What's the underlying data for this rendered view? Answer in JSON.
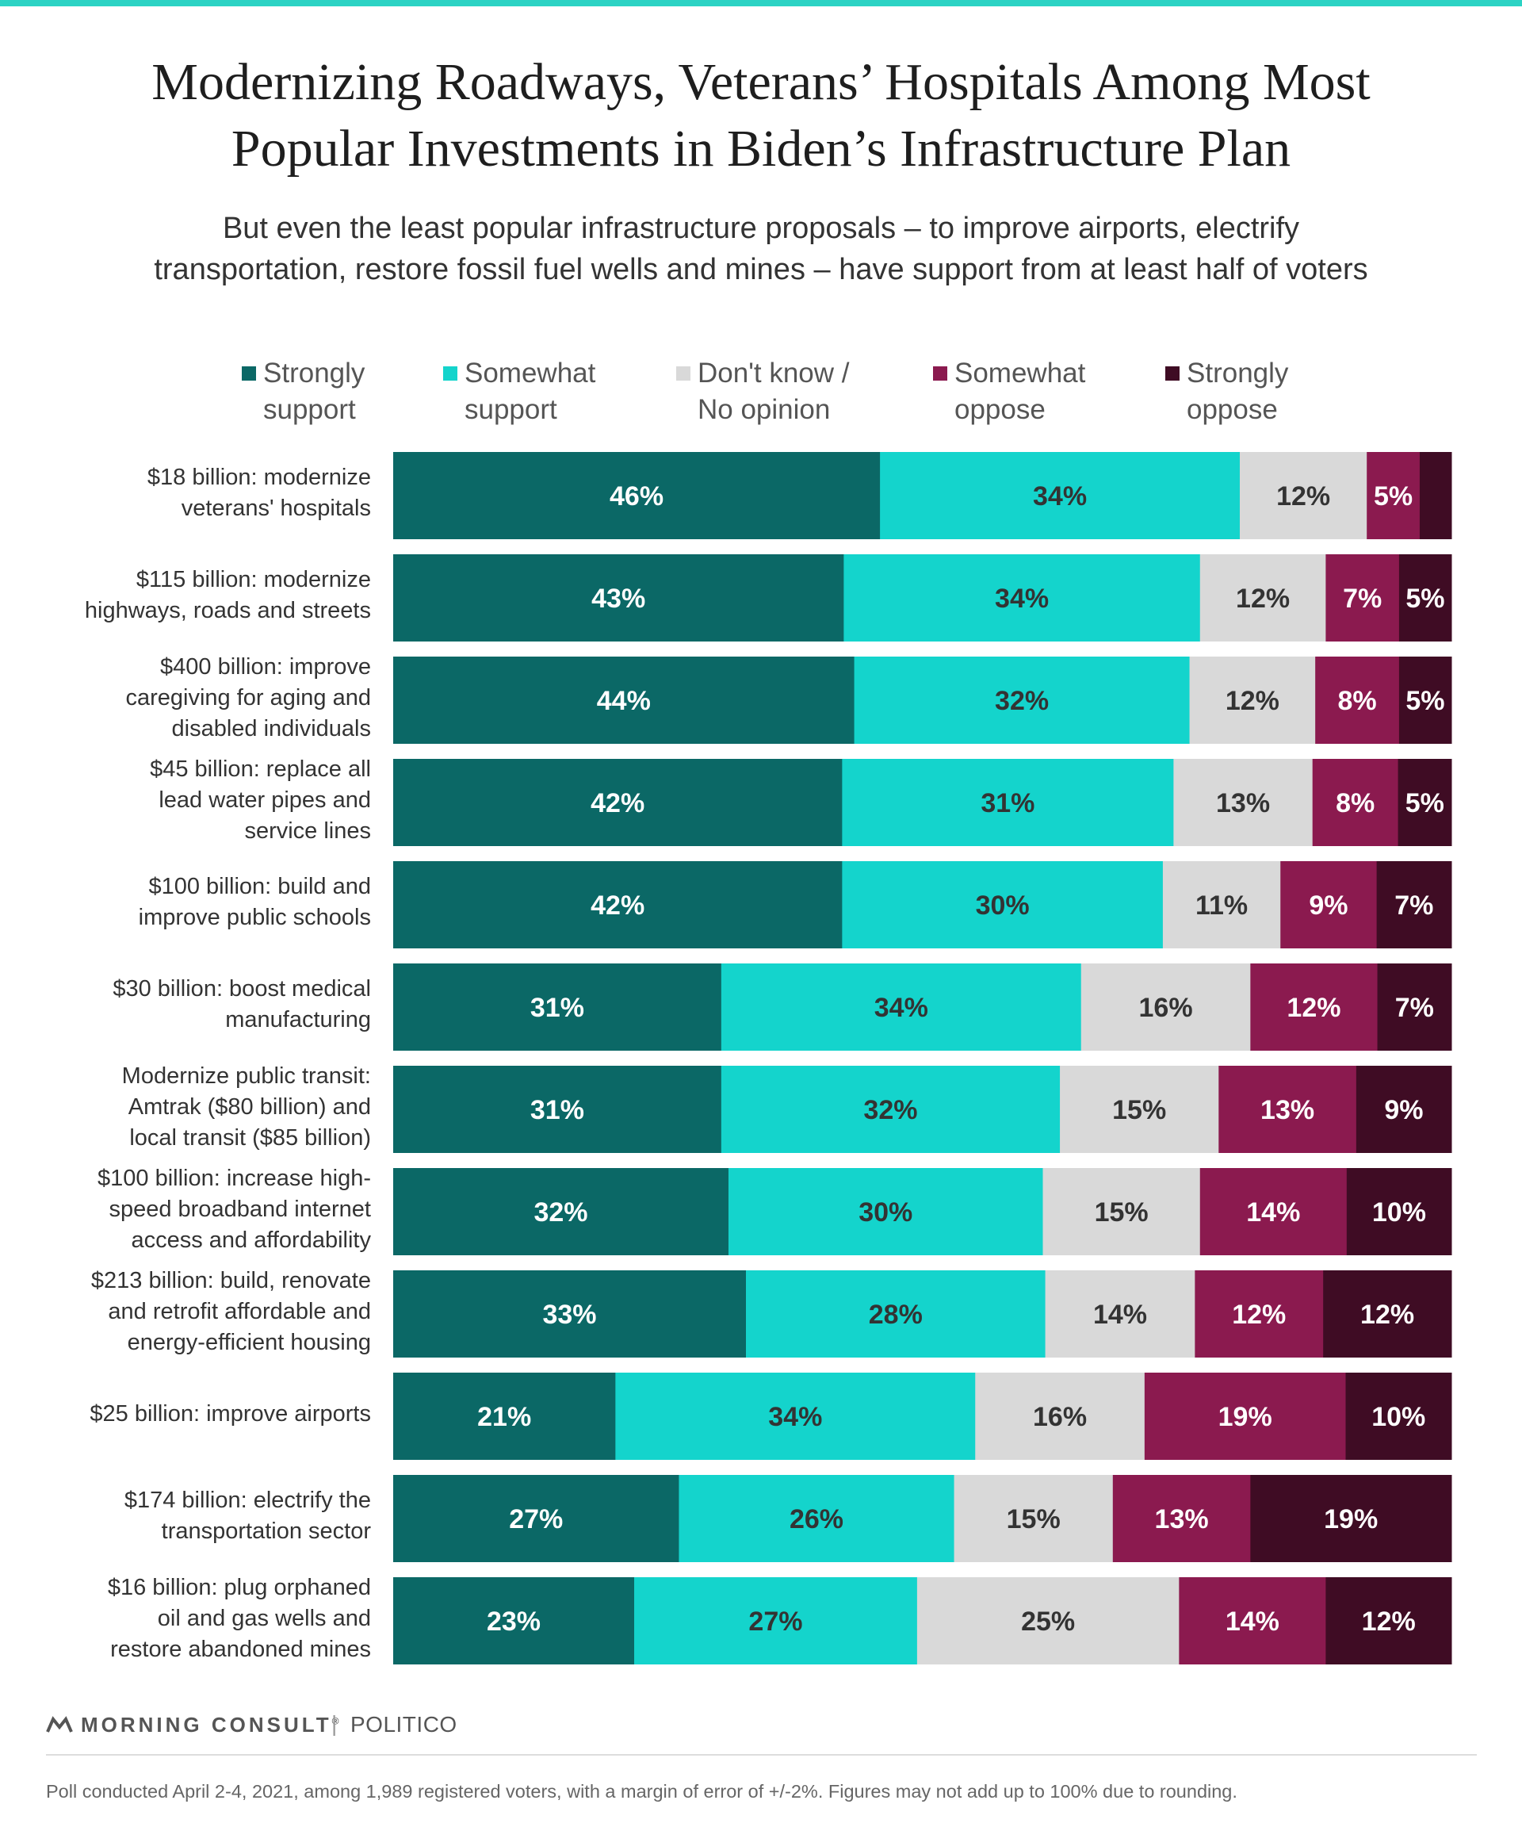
{
  "colors": {
    "accent_bar": "#2cd3c4",
    "segments": [
      "#0b6866",
      "#14d4cc",
      "#d9d9d9",
      "#8b1a4f",
      "#3f0c24"
    ],
    "label_dark": "#333333",
    "label_light": "#ffffff"
  },
  "title": {
    "line1": "Modernizing Roadways, Veterans’ Hospitals Among Most",
    "line2": "Popular Investments in Biden’s Infrastructure Plan"
  },
  "subtitle": {
    "line1": "But even the least popular infrastructure proposals – to improve airports, electrify",
    "line2": "transportation, restore fossil fuel wells and mines – have support from at least half of voters"
  },
  "chart_data": {
    "type": "bar",
    "orientation": "horizontal",
    "stacked": true,
    "normalized": true,
    "legend_position": "top",
    "categories": [
      [
        "$18 billion: modernize",
        "veterans' hospitals"
      ],
      [
        "$115 billion: modernize",
        "highways, roads and streets"
      ],
      [
        "$400 billion: improve",
        "caregiving for aging and",
        "disabled individuals"
      ],
      [
        "$45 billion: replace all",
        "lead water pipes and",
        "service lines"
      ],
      [
        "$100 billion: build and",
        "improve public schools"
      ],
      [
        "$30 billion: boost medical",
        "manufacturing"
      ],
      [
        "Modernize public transit:",
        "Amtrak ($80 billion) and",
        "local transit ($85 billion)"
      ],
      [
        "$100 billion: increase high-",
        "speed broadband internet",
        "access and affordability"
      ],
      [
        "$213 billion: build, renovate",
        "and retrofit affordable and",
        "energy-efficient housing"
      ],
      [
        "$25 billion: improve airports"
      ],
      [
        "$174 billion: electrify the",
        "transportation sector"
      ],
      [
        "$16 billion: plug orphaned",
        "oil and gas wells and",
        "restore abandoned mines"
      ]
    ],
    "series": [
      {
        "name": "Strongly support",
        "legend": [
          "Strongly",
          "support"
        ],
        "values": [
          46,
          43,
          44,
          42,
          42,
          31,
          31,
          32,
          33,
          21,
          27,
          23
        ]
      },
      {
        "name": "Somewhat support",
        "legend": [
          "Somewhat",
          "support"
        ],
        "values": [
          34,
          34,
          32,
          31,
          30,
          34,
          32,
          30,
          28,
          34,
          26,
          27
        ]
      },
      {
        "name": "Don't know / No opinion",
        "legend": [
          "Don't know /",
          "No opinion"
        ],
        "values": [
          12,
          12,
          12,
          13,
          11,
          16,
          15,
          15,
          14,
          16,
          15,
          25
        ]
      },
      {
        "name": "Somewhat oppose",
        "legend": [
          "Somewhat",
          "oppose"
        ],
        "values": [
          5,
          7,
          8,
          8,
          9,
          12,
          13,
          14,
          12,
          19,
          13,
          14
        ]
      },
      {
        "name": "Strongly oppose",
        "legend": [
          "Strongly",
          "oppose"
        ],
        "values": [
          3,
          5,
          5,
          5,
          7,
          7,
          9,
          10,
          12,
          10,
          19,
          12
        ]
      }
    ],
    "labels": [
      [
        "46%",
        "34%",
        "12%",
        "5%",
        ""
      ],
      [
        "43%",
        "34%",
        "12%",
        "7%",
        "5%"
      ],
      [
        "44%",
        "32%",
        "12%",
        "8%",
        "5%"
      ],
      [
        "42%",
        "31%",
        "13%",
        "8%",
        "5%"
      ],
      [
        "42%",
        "30%",
        "11%",
        "9%",
        "7%"
      ],
      [
        "31%",
        "34%",
        "16%",
        "12%",
        "7%"
      ],
      [
        "31%",
        "32%",
        "15%",
        "13%",
        "9%"
      ],
      [
        "32%",
        "30%",
        "15%",
        "14%",
        "10%"
      ],
      [
        "33%",
        "28%",
        "14%",
        "12%",
        "12%"
      ],
      [
        "21%",
        "34%",
        "16%",
        "19%",
        "10%"
      ],
      [
        "27%",
        "26%",
        "15%",
        "13%",
        "19%"
      ],
      [
        "23%",
        "27%",
        "25%",
        "14%",
        "12%"
      ]
    ]
  },
  "footer": {
    "brand": "MORNING CONSULT",
    "brand_mark": "®",
    "separator": "|",
    "partner": "POLITICO",
    "note": "Poll conducted April 2-4, 2021, among 1,989 registered voters, with a margin of error of +/-2%. Figures may not add up to 100% due to rounding."
  }
}
